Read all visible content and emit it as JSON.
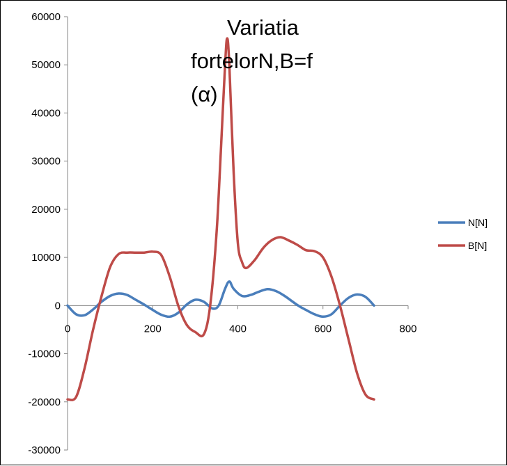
{
  "chart_data": {
    "type": "line",
    "title_lines": [
      "Variatia",
      "fortelorN,B=f",
      "(α)"
    ],
    "xlabel": "",
    "ylabel": "",
    "xlim": [
      0,
      800
    ],
    "ylim": [
      -30000,
      60000
    ],
    "x_ticks": [
      "0",
      "200",
      "400",
      "600",
      "800"
    ],
    "y_ticks": [
      "60000",
      "50000",
      "40000",
      "30000",
      "20000",
      "10000",
      "0",
      "-10000",
      "-20000",
      "-30000"
    ],
    "grid": false,
    "legend_position": "right",
    "series": [
      {
        "name": "N[N]",
        "color": "#4a7ebb",
        "points": [
          [
            0,
            0
          ],
          [
            20,
            -1800
          ],
          [
            40,
            -2000
          ],
          [
            60,
            -800
          ],
          [
            80,
            800
          ],
          [
            100,
            2000
          ],
          [
            120,
            2500
          ],
          [
            140,
            2200
          ],
          [
            160,
            1200
          ],
          [
            180,
            200
          ],
          [
            200,
            -900
          ],
          [
            220,
            -1900
          ],
          [
            240,
            -2300
          ],
          [
            260,
            -1500
          ],
          [
            280,
            200
          ],
          [
            300,
            1200
          ],
          [
            320,
            800
          ],
          [
            340,
            -600
          ],
          [
            355,
            0
          ],
          [
            370,
            3500
          ],
          [
            380,
            5000
          ],
          [
            390,
            3500
          ],
          [
            410,
            2000
          ],
          [
            430,
            2200
          ],
          [
            450,
            2900
          ],
          [
            470,
            3400
          ],
          [
            490,
            3000
          ],
          [
            510,
            2000
          ],
          [
            540,
            100
          ],
          [
            560,
            -900
          ],
          [
            580,
            -1800
          ],
          [
            600,
            -2300
          ],
          [
            620,
            -1800
          ],
          [
            640,
            0
          ],
          [
            660,
            1600
          ],
          [
            680,
            2300
          ],
          [
            700,
            1800
          ],
          [
            720,
            0
          ]
        ]
      },
      {
        "name": "B[N]",
        "color": "#be4b48",
        "points": [
          [
            0,
            -19500
          ],
          [
            20,
            -19000
          ],
          [
            40,
            -13000
          ],
          [
            60,
            -5000
          ],
          [
            80,
            2000
          ],
          [
            100,
            8000
          ],
          [
            120,
            10700
          ],
          [
            140,
            11000
          ],
          [
            160,
            11000
          ],
          [
            180,
            11000
          ],
          [
            200,
            11200
          ],
          [
            220,
            10500
          ],
          [
            240,
            6000
          ],
          [
            260,
            0
          ],
          [
            280,
            -4000
          ],
          [
            300,
            -5500
          ],
          [
            320,
            -6000
          ],
          [
            335,
            0
          ],
          [
            350,
            15000
          ],
          [
            360,
            32000
          ],
          [
            370,
            50000
          ],
          [
            375,
            55500
          ],
          [
            380,
            50000
          ],
          [
            390,
            28000
          ],
          [
            400,
            13000
          ],
          [
            410,
            9000
          ],
          [
            420,
            7800
          ],
          [
            440,
            9500
          ],
          [
            460,
            12000
          ],
          [
            480,
            13600
          ],
          [
            500,
            14200
          ],
          [
            520,
            13500
          ],
          [
            540,
            12600
          ],
          [
            560,
            11500
          ],
          [
            580,
            11300
          ],
          [
            600,
            10000
          ],
          [
            620,
            6000
          ],
          [
            640,
            0
          ],
          [
            660,
            -7000
          ],
          [
            680,
            -14000
          ],
          [
            700,
            -18500
          ],
          [
            720,
            -19500
          ]
        ]
      }
    ]
  }
}
